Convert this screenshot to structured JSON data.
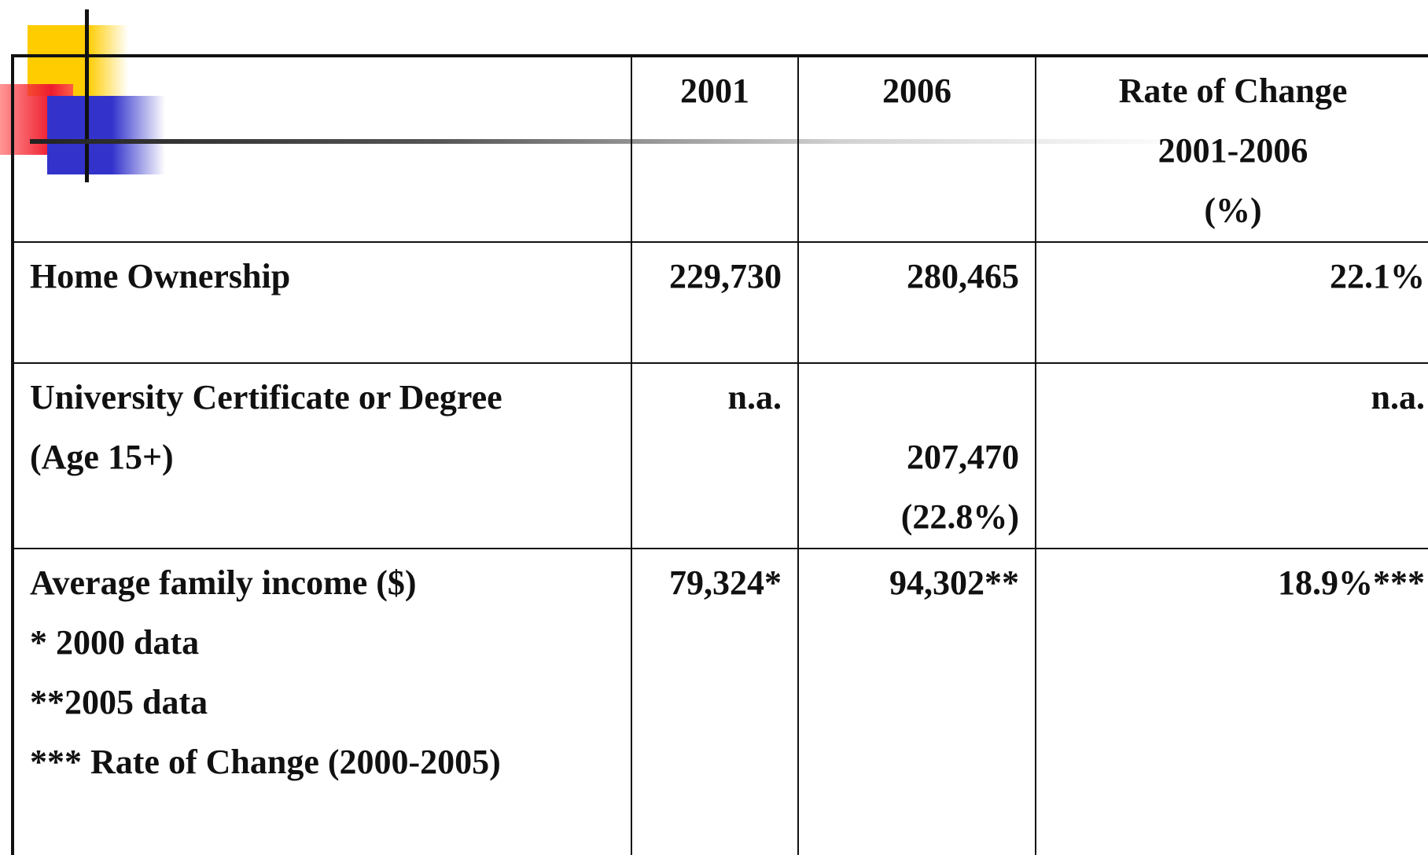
{
  "table": {
    "header": [
      [
        "2001"
      ],
      [
        "2006"
      ],
      [
        "Rate of Change",
        "2001-2006",
        "(%)"
      ]
    ],
    "rows": [
      [
        [
          "Home Ownership"
        ],
        [
          "229,730"
        ],
        [
          "280,465"
        ],
        [
          "22.1%"
        ]
      ],
      [
        [
          "University Certificate or Degree",
          "(Age 15+)"
        ],
        [
          "n.a."
        ],
        [
          "",
          "207,470",
          "(22.8%)"
        ],
        [
          "n.a."
        ]
      ],
      [
        [
          "Average family income ($)",
          "* 2000 data",
          "**2005 data",
          "*** Rate of Change (2000-2005)"
        ],
        [
          "79,324*"
        ],
        [
          "94,302**"
        ],
        [
          "18.9%***"
        ]
      ]
    ]
  }
}
